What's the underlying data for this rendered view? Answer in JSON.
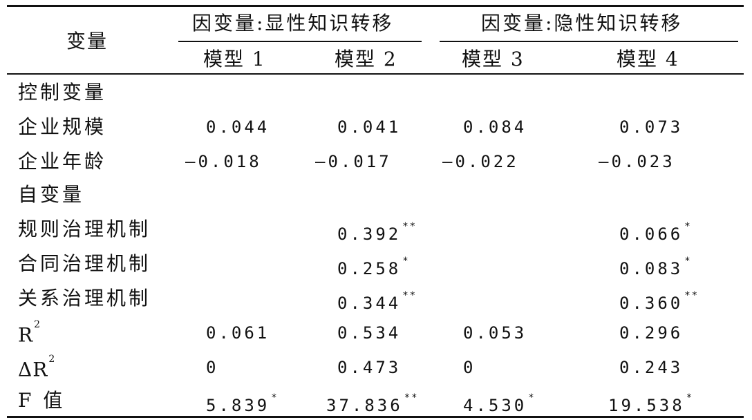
{
  "header": {
    "stub": "变量",
    "group_left": "因变量:显性知识转移",
    "group_right": "因变量:隐性知识转移",
    "models": [
      "模型 1",
      "模型 2",
      "模型 3",
      "模型 4"
    ]
  },
  "rows": [
    {
      "label": "控制变量",
      "cells": [
        "",
        "",
        "",
        ""
      ],
      "stars": [
        "",
        "",
        "",
        ""
      ]
    },
    {
      "label": "企业规模",
      "cells": [
        "0.044",
        "0.041",
        "0.084",
        "0.073"
      ],
      "stars": [
        "",
        "",
        "",
        ""
      ]
    },
    {
      "label": "企业年龄",
      "cells": [
        "—0.018",
        "—0.017",
        "—0.022",
        "—0.023"
      ],
      "stars": [
        "",
        "",
        "",
        ""
      ]
    },
    {
      "label": "自变量",
      "cells": [
        "",
        "",
        "",
        ""
      ],
      "stars": [
        "",
        "",
        "",
        ""
      ]
    },
    {
      "label": "规则治理机制",
      "cells": [
        "",
        "0.392",
        "",
        "0.066"
      ],
      "stars": [
        "",
        "**",
        "",
        "*"
      ]
    },
    {
      "label": "合同治理机制",
      "cells": [
        "",
        "0.258",
        "",
        "0.083"
      ],
      "stars": [
        "",
        "*",
        "",
        "*"
      ]
    },
    {
      "label": "关系治理机制",
      "cells": [
        "",
        "0.344",
        "",
        "0.360"
      ],
      "stars": [
        "",
        "**",
        "",
        "**"
      ]
    },
    {
      "label_main": "R",
      "label_sup": "2",
      "cells": [
        "0.061",
        "0.534",
        "0.053",
        "0.296"
      ],
      "stars": [
        "",
        "",
        "",
        ""
      ]
    },
    {
      "label_main": "ΔR",
      "label_sup": "2",
      "cells": [
        "0",
        "0.473",
        "0",
        "0.243"
      ],
      "stars": [
        "",
        "",
        "",
        ""
      ]
    },
    {
      "label": "F 值",
      "cells": [
        "5.839",
        "37.836",
        "4.530",
        "19.538"
      ],
      "stars": [
        "*",
        "**",
        "*",
        "*"
      ]
    }
  ]
}
